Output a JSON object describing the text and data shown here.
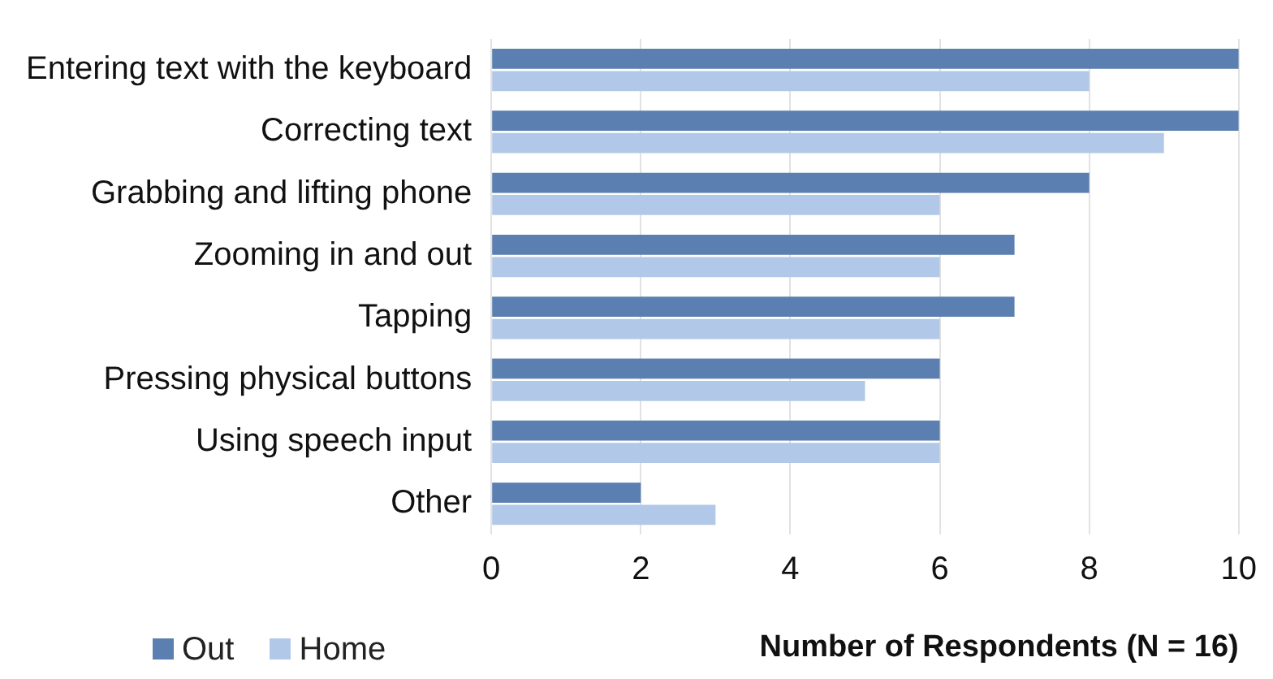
{
  "chart_data": {
    "type": "bar",
    "orientation": "horizontal",
    "xlabel": "Number of Respondents (N = 16)",
    "categories": [
      "Entering text with the keyboard",
      "Correcting text",
      "Grabbing and lifting phone",
      "Zooming in and out",
      "Tapping",
      "Pressing physical buttons",
      "Using speech input",
      "Other"
    ],
    "series": [
      {
        "name": "Out",
        "color": "#5b7fb0",
        "values": [
          10,
          10,
          8,
          7,
          7,
          6,
          6,
          2
        ]
      },
      {
        "name": "Home",
        "color": "#b2c8e8",
        "values": [
          8,
          9,
          6,
          6,
          6,
          5,
          6,
          3
        ]
      }
    ],
    "xlim": [
      0,
      10
    ],
    "xticks": [
      0,
      2,
      4,
      6,
      8,
      10
    ],
    "grid": "x",
    "legend": "bottom left"
  }
}
